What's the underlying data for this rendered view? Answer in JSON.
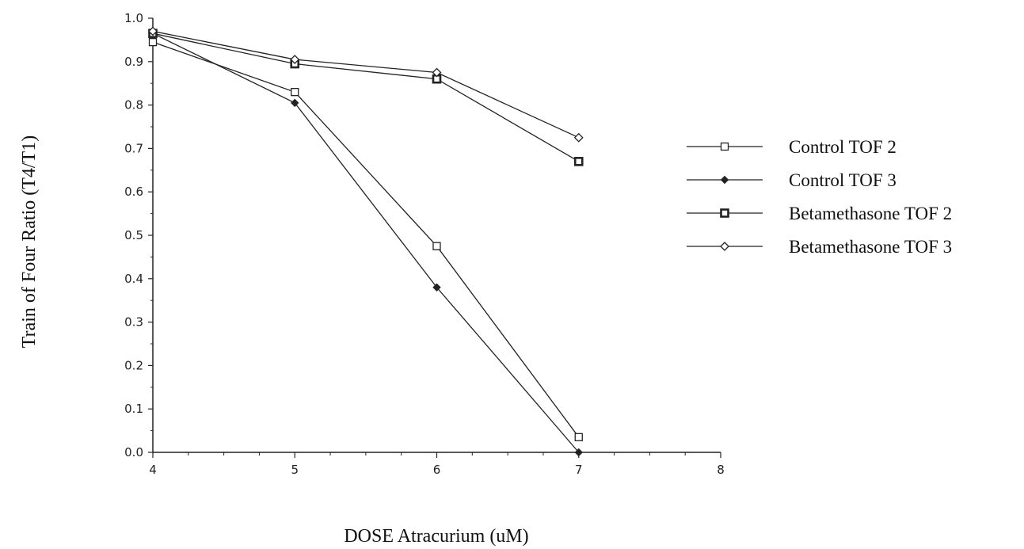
{
  "chart_data": {
    "type": "line",
    "xlabel": "DOSE Atracurium (uM)",
    "ylabel": "Train of Four Ratio (T4/T1)",
    "xlim": [
      4,
      8
    ],
    "ylim": [
      0,
      1
    ],
    "x_ticks": [
      "4",
      "5",
      "6",
      "7",
      "8"
    ],
    "y_ticks": [
      "0.0",
      "0.1",
      "0.2",
      "0.3",
      "0.4",
      "0.5",
      "0.6",
      "0.7",
      "0.8",
      "0.9",
      "1.0"
    ],
    "grid": false,
    "legend_position": "right",
    "x": [
      4,
      5,
      6,
      7
    ],
    "series": [
      {
        "name": "Control TOF 2",
        "marker": "open-square",
        "values": [
          0.945,
          0.83,
          0.475,
          0.035
        ]
      },
      {
        "name": "Control TOF 3",
        "marker": "filled-diamond",
        "values": [
          0.965,
          0.805,
          0.38,
          0.0
        ]
      },
      {
        "name": "Betamethasone TOF 2",
        "marker": "bold-square",
        "values": [
          0.965,
          0.895,
          0.86,
          0.67
        ]
      },
      {
        "name": "Betamethasone TOF 3",
        "marker": "open-diamond",
        "values": [
          0.97,
          0.905,
          0.875,
          0.725
        ]
      }
    ],
    "line_color": "#222222"
  }
}
